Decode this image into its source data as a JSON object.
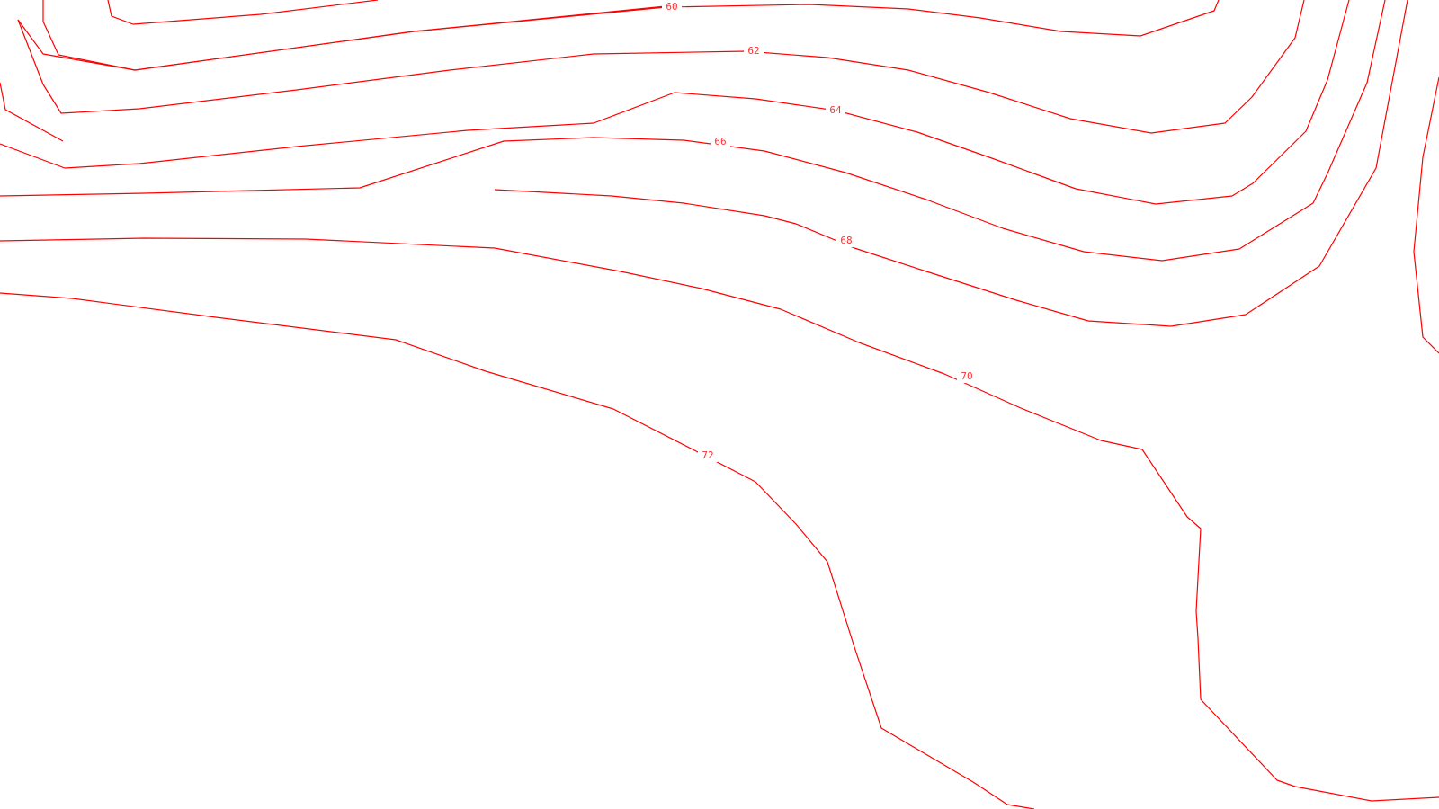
{
  "map": {
    "background": "#ffffff",
    "line_color": "#ff0000",
    "label_color": "#ff3030",
    "contours": [
      {
        "level": "60",
        "label": "60"
      },
      {
        "level": "62",
        "label": "62"
      },
      {
        "level": "64",
        "label": "64"
      },
      {
        "level": "66",
        "label": "66"
      },
      {
        "level": "68",
        "label": "68"
      },
      {
        "level": "70",
        "label": "70"
      },
      {
        "level": "72",
        "label": "72"
      }
    ]
  }
}
